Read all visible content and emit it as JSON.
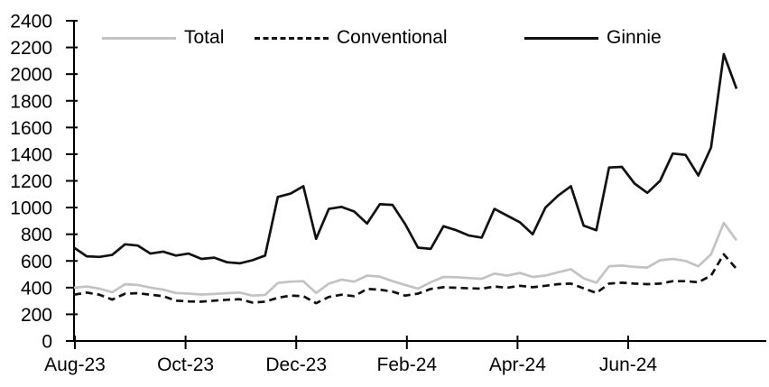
{
  "chart_data": {
    "type": "line",
    "title": "",
    "x_unit": "weekly",
    "x_range_label": "Aug-23 to Aug-24",
    "x_tick_labels": [
      "Aug-23",
      "Oct-23",
      "Dec-23",
      "Feb-24",
      "Apr-24",
      "Jun-24"
    ],
    "y_tick_labels": [
      "0",
      "200",
      "400",
      "600",
      "800",
      "1000",
      "1200",
      "1400",
      "1600",
      "1800",
      "2000",
      "2200",
      "2400"
    ],
    "ylim": [
      0,
      2400
    ],
    "y_tick_step": 200,
    "grid": false,
    "legend_position": "top",
    "axis_color": "#000000",
    "background_color": "#ffffff",
    "series": [
      {
        "name": "Total",
        "color": "#c3c3c3",
        "style": "solid",
        "values": [
          400,
          408,
          392,
          365,
          425,
          420,
          400,
          385,
          360,
          355,
          348,
          352,
          358,
          363,
          340,
          345,
          435,
          445,
          448,
          360,
          430,
          460,
          445,
          490,
          483,
          448,
          420,
          392,
          440,
          480,
          478,
          472,
          466,
          505,
          490,
          510,
          480,
          490,
          515,
          538,
          470,
          437,
          560,
          565,
          555,
          550,
          605,
          615,
          600,
          560,
          650,
          885,
          755
        ]
      },
      {
        "name": "Conventional",
        "color": "#111111",
        "style": "dashed",
        "values": [
          347,
          363,
          347,
          310,
          354,
          358,
          347,
          336,
          302,
          297,
          295,
          302,
          309,
          313,
          288,
          295,
          324,
          340,
          336,
          283,
          330,
          347,
          336,
          390,
          385,
          370,
          340,
          355,
          390,
          403,
          399,
          395,
          392,
          408,
          399,
          414,
          403,
          414,
          426,
          430,
          395,
          360,
          430,
          437,
          430,
          426,
          430,
          448,
          448,
          440,
          490,
          650,
          540
        ]
      },
      {
        "name": "Ginnie",
        "color": "#111111",
        "style": "solid",
        "values": [
          700,
          635,
          630,
          645,
          725,
          715,
          655,
          670,
          640,
          655,
          615,
          625,
          590,
          582,
          605,
          640,
          1080,
          1105,
          1160,
          765,
          990,
          1005,
          970,
          880,
          1025,
          1020,
          875,
          700,
          690,
          860,
          830,
          790,
          775,
          990,
          940,
          890,
          800,
          1000,
          1090,
          1160,
          865,
          830,
          1300,
          1305,
          1180,
          1110,
          1200,
          1405,
          1395,
          1240,
          1450,
          2150,
          1890
        ]
      }
    ]
  },
  "legend": {
    "items": [
      {
        "label": "Total"
      },
      {
        "label": "Conventional"
      },
      {
        "label": "Ginnie"
      }
    ]
  }
}
